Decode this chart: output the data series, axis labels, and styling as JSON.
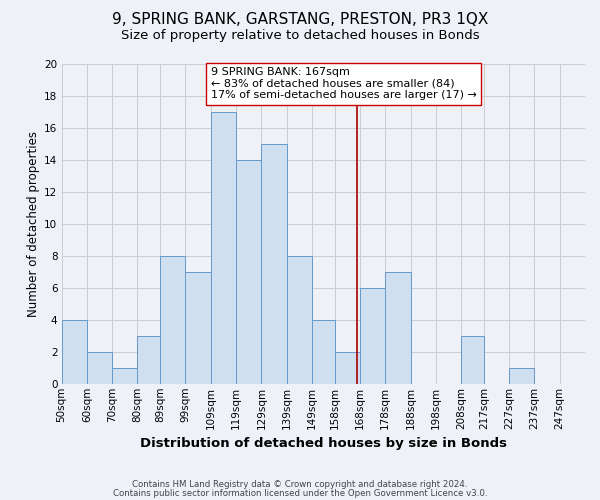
{
  "title": "9, SPRING BANK, GARSTANG, PRESTON, PR3 1QX",
  "subtitle": "Size of property relative to detached houses in Bonds",
  "xlabel": "Distribution of detached houses by size in Bonds",
  "ylabel": "Number of detached properties",
  "footer_lines": [
    "Contains HM Land Registry data © Crown copyright and database right 2024.",
    "Contains public sector information licensed under the Open Government Licence v3.0."
  ],
  "bin_labels": [
    "50sqm",
    "60sqm",
    "70sqm",
    "80sqm",
    "89sqm",
    "99sqm",
    "109sqm",
    "119sqm",
    "129sqm",
    "139sqm",
    "149sqm",
    "158sqm",
    "168sqm",
    "178sqm",
    "188sqm",
    "198sqm",
    "208sqm",
    "217sqm",
    "227sqm",
    "237sqm",
    "247sqm"
  ],
  "bin_edges": [
    50,
    60,
    70,
    80,
    89,
    99,
    109,
    119,
    129,
    139,
    149,
    158,
    168,
    178,
    188,
    198,
    208,
    217,
    227,
    237,
    247,
    257
  ],
  "counts": [
    4,
    2,
    1,
    3,
    8,
    7,
    17,
    14,
    15,
    8,
    4,
    2,
    6,
    7,
    0,
    0,
    3,
    0,
    1,
    0,
    0
  ],
  "bar_color": "#cfdff0",
  "bar_edge_color": "#6699cc",
  "vline_x": 167,
  "vline_color": "#aa0000",
  "annotation_text": "9 SPRING BANK: 167sqm\n← 83% of detached houses are smaller (84)\n17% of semi-detached houses are larger (17) →",
  "annotation_box_edge": "#cc0000",
  "annotation_box_face": "white",
  "ylim": [
    0,
    20
  ],
  "yticks": [
    0,
    2,
    4,
    6,
    8,
    10,
    12,
    14,
    16,
    18,
    20
  ],
  "bg_color": "#eef2f8",
  "grid_color": "#cccccc",
  "title_fontsize": 11,
  "subtitle_fontsize": 9.5,
  "xlabel_fontsize": 9.5,
  "ylabel_fontsize": 8.5,
  "tick_fontsize": 7.5,
  "annotation_fontsize": 8.0,
  "footer_fontsize": 6.2,
  "footer_color": "#444444"
}
